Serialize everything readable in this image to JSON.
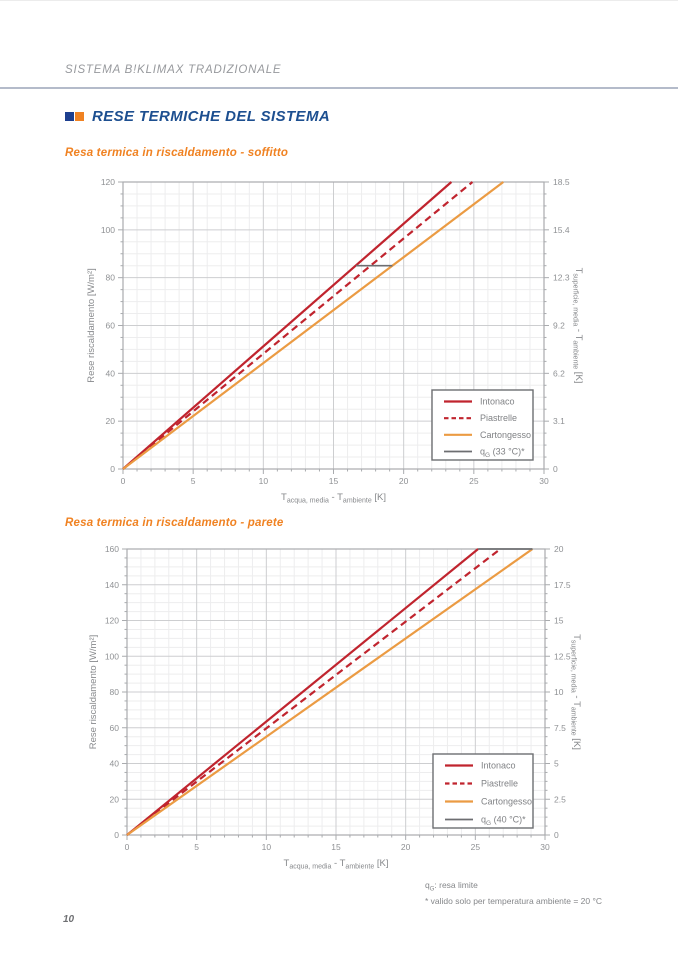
{
  "header": {
    "title": "SISTEMA B!KLIMAX TRADIZIONALE"
  },
  "section": {
    "title": "RESE TERMICHE DEL SISTEMA"
  },
  "colors": {
    "brand_blue": "#1d4f90",
    "brand_orange": "#f08222",
    "line_red": "#c0242e",
    "line_orange": "#eb9b43",
    "line_gray": "#6d6e71",
    "grid_minor": "#ededee",
    "grid_major": "#cdced0",
    "frame": "#a9abae",
    "tick_text": "#8f9194",
    "axis_text": "#87898c",
    "legend_text": "#808285"
  },
  "footnote": {
    "sym": "q",
    "sym_sub": "G",
    "sym_rest": ": resa limite",
    "line2": "* valido solo per temperatura ambiente = 20 °C"
  },
  "page_number": "10",
  "chart_data": [
    {
      "type": "line",
      "title": "Resa termica in riscaldamento - soffitto",
      "xlabel": "T_acqua,media - T_ambiente [K]",
      "xlabel_parts": [
        [
          "T",
          false
        ],
        [
          "acqua, media",
          true
        ],
        [
          " - T",
          false
        ],
        [
          "ambiente",
          true
        ],
        [
          " [K]",
          false
        ]
      ],
      "ylabel_left": "Rese riscaldamento [W/m²]",
      "ylabel_right": "T_superficie,media - T_ambiente [K]",
      "ylabel_right_parts": [
        [
          "T",
          false
        ],
        [
          "superficie, media",
          true
        ],
        [
          " - T",
          false
        ],
        [
          "ambiente",
          true
        ],
        [
          " [K]",
          false
        ]
      ],
      "xlim": [
        0,
        30
      ],
      "x_major": 5,
      "x_minor": 1,
      "ylim": [
        0,
        120
      ],
      "y_major": 20,
      "y_minor": 5,
      "right_tick_labels": [
        "0",
        "3.1",
        "6.2",
        "9.2",
        "12.3",
        "15.4",
        "18.5"
      ],
      "grid": true,
      "legend_position": "lower right",
      "series": [
        {
          "name": "Intonaco",
          "name_parts": [
            [
              "Intonaco",
              false
            ]
          ],
          "color": "#c0242e",
          "dash": null,
          "points": [
            [
              0,
              0
            ],
            [
              23.4,
              120
            ]
          ]
        },
        {
          "name": "Piastrelle",
          "name_parts": [
            [
              "Piastrelle",
              false
            ]
          ],
          "color": "#c0242e",
          "dash": "7 4.5",
          "points": [
            [
              0,
              0
            ],
            [
              24.9,
              120
            ]
          ]
        },
        {
          "name": "Cartongesso",
          "name_parts": [
            [
              "Cartongesso",
              false
            ]
          ],
          "color": "#eb9b43",
          "dash": null,
          "points": [
            [
              0,
              0
            ],
            [
              27.1,
              120
            ]
          ]
        },
        {
          "name": "qG (33 °C)*",
          "name_parts": [
            [
              "q",
              false
            ],
            [
              "G",
              true
            ],
            [
              " (33 °C)*",
              false
            ]
          ],
          "color": "#6d6e71",
          "dash": null,
          "width": 1.7,
          "points": [
            [
              16.6,
              85
            ],
            [
              19.2,
              85
            ]
          ]
        }
      ]
    },
    {
      "type": "line",
      "title": "Resa termica in riscaldamento - parete",
      "xlabel": "T_acqua,media - T_ambiente [K]",
      "xlabel_parts": [
        [
          "T",
          false
        ],
        [
          "acqua, media",
          true
        ],
        [
          " - T",
          false
        ],
        [
          "ambiente",
          true
        ],
        [
          " [K]",
          false
        ]
      ],
      "ylabel_left": "Rese riscaldamento [W/m²]",
      "ylabel_right": "T_superficie,media - T_ambiente [K]",
      "ylabel_right_parts": [
        [
          "T",
          false
        ],
        [
          "superficie, media",
          true
        ],
        [
          " - T",
          false
        ],
        [
          "ambiente",
          true
        ],
        [
          " [K]",
          false
        ]
      ],
      "xlim": [
        0,
        30
      ],
      "x_major": 5,
      "x_minor": 1,
      "ylim": [
        0,
        160
      ],
      "y_major": 20,
      "y_minor": 5,
      "right_tick_labels": [
        "0",
        "2.5",
        "5",
        "7.5",
        "10",
        "12.5",
        "15",
        "17.5",
        "20"
      ],
      "grid": true,
      "legend_position": "lower right",
      "series": [
        {
          "name": "Intonaco",
          "name_parts": [
            [
              "Intonaco",
              false
            ]
          ],
          "color": "#c0242e",
          "dash": null,
          "points": [
            [
              0,
              0
            ],
            [
              25.2,
              160
            ]
          ]
        },
        {
          "name": "Piastrelle",
          "name_parts": [
            [
              "Piastrelle",
              false
            ]
          ],
          "color": "#c0242e",
          "dash": "7 4.5",
          "points": [
            [
              0,
              0
            ],
            [
              26.8,
              160
            ]
          ]
        },
        {
          "name": "Cartongesso",
          "name_parts": [
            [
              "Cartongesso",
              false
            ]
          ],
          "color": "#eb9b43",
          "dash": null,
          "points": [
            [
              0,
              0
            ],
            [
              29.1,
              160
            ]
          ]
        },
        {
          "name": "qG (40 °C)*",
          "name_parts": [
            [
              "q",
              false
            ],
            [
              "G",
              true
            ],
            [
              " (40 °C)*",
              false
            ]
          ],
          "color": "#6d6e71",
          "dash": null,
          "width": 1.7,
          "points": [
            [
              25.2,
              160
            ],
            [
              29.1,
              160
            ]
          ]
        }
      ]
    }
  ]
}
